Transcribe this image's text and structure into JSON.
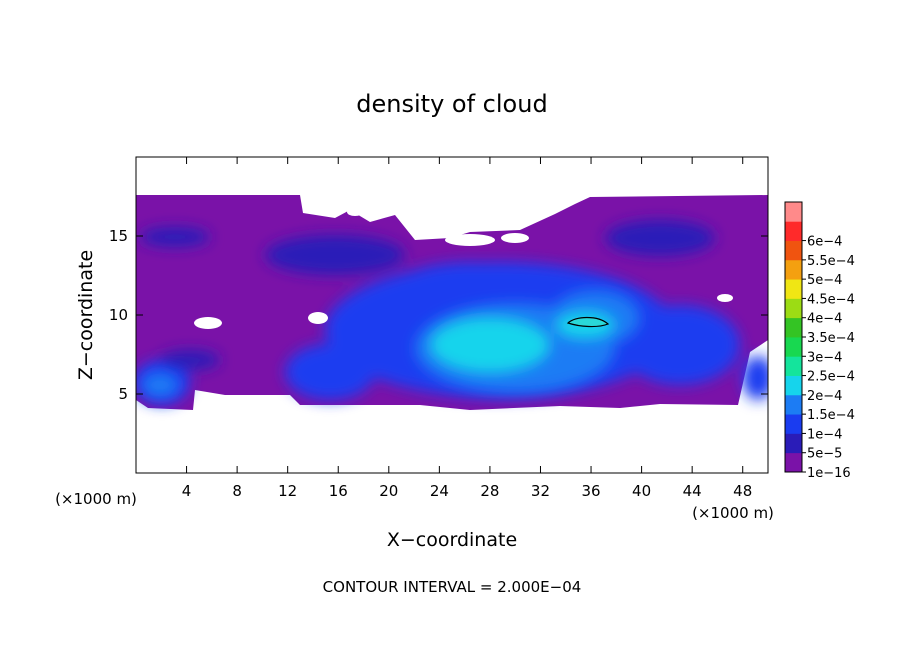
{
  "chart_data": {
    "type": "heatmap",
    "title": "density of cloud",
    "xlabel": "X−coordinate",
    "ylabel": "Z−coordinate",
    "x_unit_left": "(×1000 m)",
    "x_unit_right": "(×1000 m)",
    "footer": "CONTOUR INTERVAL = 2.000E−04",
    "xlim": [
      0,
      50
    ],
    "ylim": [
      0,
      20
    ],
    "x_ticks": [
      4,
      8,
      12,
      16,
      20,
      24,
      28,
      32,
      36,
      40,
      44,
      48
    ],
    "y_ticks": [
      5,
      10,
      15
    ],
    "colorbar": {
      "labels": [
        "1e−16",
        "5e−5",
        "1e−4",
        "1.5e−4",
        "2e−4",
        "2.5e−4",
        "3e−4",
        "3.5e−4",
        "4e−4",
        "4.5e−4",
        "5e−4",
        "5.5e−4",
        "6e−4"
      ],
      "colors": [
        "#7a12a8",
        "#2a1cb8",
        "#1a3cf0",
        "#1c7cf4",
        "#16d4ec",
        "#14e49c",
        "#18d850",
        "#34c424",
        "#9cdc14",
        "#f0e614",
        "#f4a010",
        "#f05410",
        "#ff2a2a",
        "#ff8a8a"
      ]
    },
    "cloud": {
      "base_z": 4.3,
      "top_z": 17.5,
      "dense_core_x": [
        24,
        38
      ],
      "dense_core_z": [
        6.0,
        9.8
      ],
      "max_contour_x": [
        34.5,
        37.5
      ],
      "max_contour_z": 9.6
    }
  }
}
